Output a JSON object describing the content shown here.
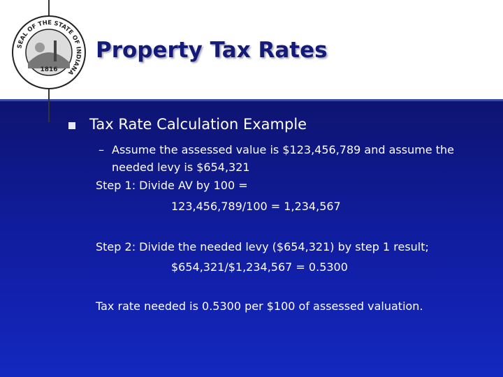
{
  "header": {
    "title": "Property Tax Rates",
    "seal": {
      "ring_text": "SEAL OF THE STATE OF INDIANA",
      "year": "1816"
    }
  },
  "content": {
    "bullet": "Tax Rate Calculation Example",
    "sub_bullet": {
      "marker": "–",
      "lines": [
        "Assume the assessed value is $123,456,789 and assume the",
        "needed levy is $654,321"
      ]
    },
    "steps": [
      "Step 1: Divide AV by 100 =",
      "123,456,789/100 = 1,234,567",
      "Step 2: Divide the needed levy ($654,321) by step 1 result;",
      "$654,321/$1,234,567 = 0.5300",
      "Tax rate needed is 0.5300 per $100 of assessed valuation."
    ]
  }
}
